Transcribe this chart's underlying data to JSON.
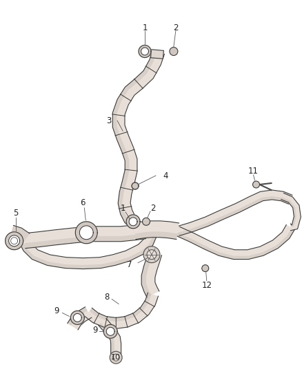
{
  "bg_color": "#ffffff",
  "line_color": "#3a3a3a",
  "label_color": "#2a2a2a",
  "figsize": [
    4.38,
    5.33
  ],
  "dpi": 100,
  "tube_color": "#4a4a4a",
  "tube_fill": "#e8e0d8",
  "shading_color": "#c0b8b0"
}
